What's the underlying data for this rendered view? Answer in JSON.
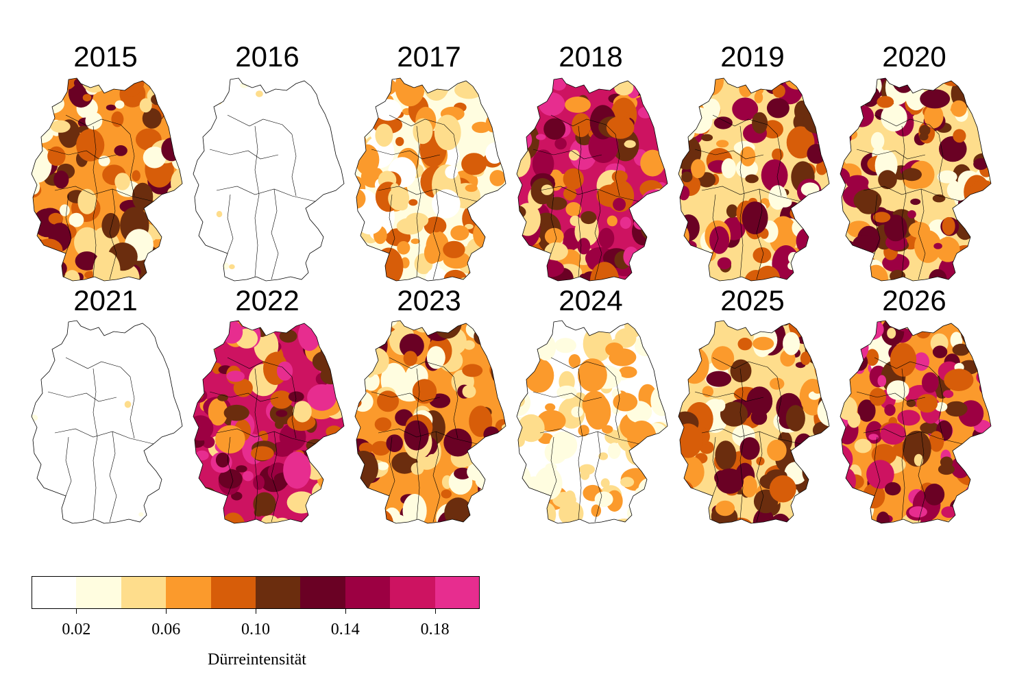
{
  "maps": [
    {
      "year": "2015",
      "intensity_levels": [
        1,
        2,
        3,
        4,
        5,
        6
      ],
      "dominant_level": 3
    },
    {
      "year": "2016",
      "intensity_levels": [
        0,
        1,
        2
      ],
      "dominant_level": 0
    },
    {
      "year": "2017",
      "intensity_levels": [
        0,
        1,
        2,
        3,
        4
      ],
      "dominant_level": 1
    },
    {
      "year": "2018",
      "intensity_levels": [
        2,
        3,
        4,
        5,
        6,
        7,
        8,
        9
      ],
      "dominant_level": 8
    },
    {
      "year": "2019",
      "intensity_levels": [
        1,
        2,
        3,
        4,
        5,
        6,
        7
      ],
      "dominant_level": 2
    },
    {
      "year": "2020",
      "intensity_levels": [
        1,
        2,
        3,
        4,
        5,
        6,
        7
      ],
      "dominant_level": 2
    },
    {
      "year": "2021",
      "intensity_levels": [
        0,
        1,
        2
      ],
      "dominant_level": 0
    },
    {
      "year": "2022",
      "intensity_levels": [
        2,
        3,
        4,
        5,
        6,
        7,
        8,
        9
      ],
      "dominant_level": 8
    },
    {
      "year": "2023",
      "intensity_levels": [
        1,
        2,
        3,
        4,
        5,
        6
      ],
      "dominant_level": 3
    },
    {
      "year": "2024",
      "intensity_levels": [
        0,
        1,
        2,
        3
      ],
      "dominant_level": 0
    },
    {
      "year": "2025",
      "intensity_levels": [
        1,
        2,
        3,
        4,
        5,
        6
      ],
      "dominant_level": 2
    },
    {
      "year": "2026",
      "intensity_levels": [
        1,
        2,
        3,
        4,
        5,
        6,
        7,
        8,
        9
      ],
      "dominant_level": 3
    }
  ],
  "colorbar": {
    "title": "Dürreintensität",
    "range": [
      0.0,
      0.2
    ],
    "bins": [
      {
        "from": 0.0,
        "to": 0.02,
        "color": "#ffffff"
      },
      {
        "from": 0.02,
        "to": 0.04,
        "color": "#fffde0"
      },
      {
        "from": 0.04,
        "to": 0.06,
        "color": "#fedd8c"
      },
      {
        "from": 0.06,
        "to": 0.08,
        "color": "#fb9a2c"
      },
      {
        "from": 0.08,
        "to": 0.1,
        "color": "#d75d09"
      },
      {
        "from": 0.1,
        "to": 0.12,
        "color": "#6b2d0e"
      },
      {
        "from": 0.12,
        "to": 0.14,
        "color": "#6a0124"
      },
      {
        "from": 0.14,
        "to": 0.16,
        "color": "#9c0042"
      },
      {
        "from": 0.16,
        "to": 0.18,
        "color": "#cd1361"
      },
      {
        "from": 0.18,
        "to": 0.2,
        "color": "#e72d8f"
      }
    ],
    "tick_labels": [
      "0.02",
      "0.06",
      "0.10",
      "0.14",
      "0.18"
    ],
    "tick_values": [
      0.02,
      0.06,
      0.1,
      0.14,
      0.18
    ]
  }
}
